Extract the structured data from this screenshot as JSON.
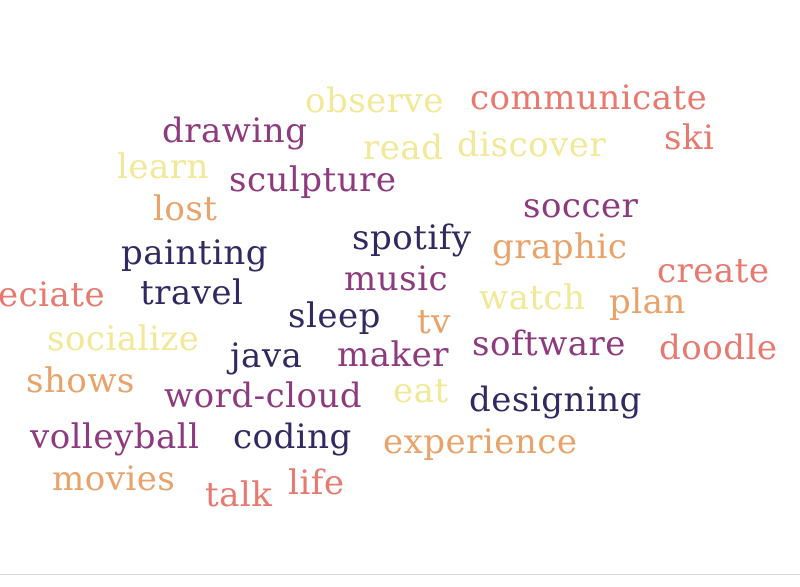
{
  "palette": {
    "navy": "#312a60",
    "plum": "#8e3a7e",
    "coral": "#e8796f",
    "orange": "#e9a36a",
    "yellow": "#f1e898"
  },
  "words": [
    {
      "text": "observe",
      "color": "yellow"
    },
    {
      "text": "communicate",
      "color": "coral"
    },
    {
      "text": "drawing",
      "color": "plum"
    },
    {
      "text": "ski",
      "color": "coral"
    },
    {
      "text": "read",
      "color": "yellow"
    },
    {
      "text": "discover",
      "color": "yellow"
    },
    {
      "text": "learn",
      "color": "yellow"
    },
    {
      "text": "sculpture",
      "color": "plum"
    },
    {
      "text": "lost",
      "color": "orange"
    },
    {
      "text": "soccer",
      "color": "plum"
    },
    {
      "text": "spotify",
      "color": "navy"
    },
    {
      "text": "painting",
      "color": "navy"
    },
    {
      "text": "graphic",
      "color": "orange"
    },
    {
      "text": "create",
      "color": "coral"
    },
    {
      "text": "music",
      "color": "plum"
    },
    {
      "text": "eciate",
      "color": "coral"
    },
    {
      "text": "travel",
      "color": "navy"
    },
    {
      "text": "watch",
      "color": "yellow"
    },
    {
      "text": "plan",
      "color": "orange"
    },
    {
      "text": "sleep",
      "color": "navy"
    },
    {
      "text": "tv",
      "color": "orange"
    },
    {
      "text": "socialize",
      "color": "yellow"
    },
    {
      "text": "software",
      "color": "plum"
    },
    {
      "text": "java",
      "color": "navy"
    },
    {
      "text": "maker",
      "color": "plum"
    },
    {
      "text": "doodle",
      "color": "coral"
    },
    {
      "text": "shows",
      "color": "orange"
    },
    {
      "text": "word-cloud",
      "color": "plum"
    },
    {
      "text": "eat",
      "color": "yellow"
    },
    {
      "text": "designing",
      "color": "navy"
    },
    {
      "text": "volleyball",
      "color": "plum"
    },
    {
      "text": "coding",
      "color": "navy"
    },
    {
      "text": "experience",
      "color": "orange"
    },
    {
      "text": "movies",
      "color": "orange"
    },
    {
      "text": "life",
      "color": "coral"
    },
    {
      "text": "talk",
      "color": "coral"
    }
  ]
}
